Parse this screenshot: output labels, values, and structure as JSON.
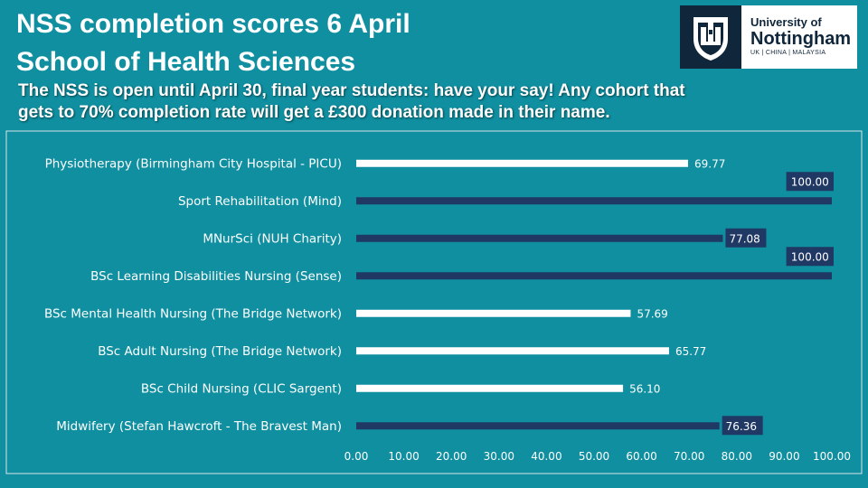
{
  "header": {
    "title_line1": "NSS completion scores 6 April",
    "title_line2": "School of Health Sciences",
    "subtitle_line1": "The NSS is open until April 30, final year students: have your say! Any cohort that",
    "subtitle_line2": "gets to 70% completion rate will get a £300 donation made in their name."
  },
  "logo": {
    "line1": "University of",
    "line2": "Nottingham",
    "line3": "UK | CHINA | MALAYSIA"
  },
  "colors": {
    "background": "#0f8fa0",
    "plot_background": "#0f8fa0",
    "bar_below_target": "#ffffff",
    "bar_above_target": "#203864",
    "label_box": "#203864",
    "text": "#ffffff"
  },
  "chart_data": {
    "type": "bar",
    "orientation": "horizontal",
    "categories": [
      "Physiotherapy (Birmingham City Hospital - PICU)",
      "Sport Rehabilitation (Mind)",
      "MNurSci (NUH Charity)",
      "BSc Learning Disabilities Nursing (Sense)",
      "BSc Mental Health Nursing (The Bridge Network)",
      "BSc Adult Nursing (The Bridge Network)",
      "BSc Child Nursing (CLIC Sargent)",
      "Midwifery (Stefan Hawcroft - The Bravest Man)"
    ],
    "values": [
      69.77,
      100.0,
      77.08,
      100.0,
      57.69,
      65.77,
      56.1,
      76.36
    ],
    "value_labels": [
      "69.77",
      "100.00",
      "77.08",
      "100.00",
      "57.69",
      "65.77",
      "56.10",
      "76.36"
    ],
    "xlim": [
      0,
      100
    ],
    "xticks": [
      "0.00",
      "10.00",
      "20.00",
      "30.00",
      "40.00",
      "50.00",
      "60.00",
      "70.00",
      "80.00",
      "90.00",
      "100.00"
    ],
    "target": 70,
    "grid": false,
    "legend": "none"
  }
}
